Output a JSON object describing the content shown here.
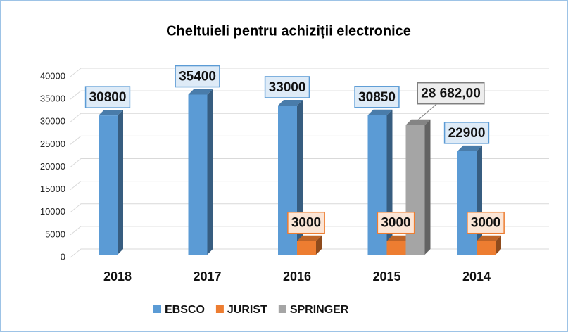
{
  "chart_data": {
    "type": "bar3d",
    "title": "Cheltuieli pentru achiziţii electronice",
    "categories": [
      "2018",
      "2017",
      "2016",
      "2015",
      "2014"
    ],
    "series": [
      {
        "name": "EBSCO",
        "color": "#5b9bd5",
        "values": [
          30800,
          35400,
          33000,
          30850,
          22900
        ]
      },
      {
        "name": "JURIST",
        "color": "#ed7d31",
        "values": [
          null,
          null,
          3000,
          3000,
          3000
        ]
      },
      {
        "name": "SPRINGER",
        "color": "#a5a5a5",
        "values": [
          null,
          null,
          null,
          28682,
          null
        ],
        "value_labels": [
          null,
          null,
          null,
          "28 682,00",
          null
        ]
      }
    ],
    "ylim": [
      0,
      40000
    ],
    "yticks": [
      0,
      5000,
      10000,
      15000,
      20000,
      25000,
      30000,
      35000,
      40000
    ],
    "grid": true,
    "legend": "bottom"
  }
}
